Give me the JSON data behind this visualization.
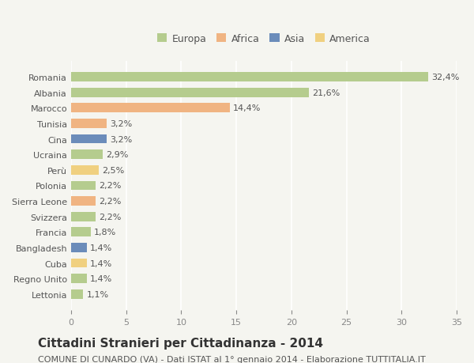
{
  "countries": [
    "Romania",
    "Albania",
    "Marocco",
    "Tunisia",
    "Cina",
    "Ucraina",
    "Perù",
    "Polonia",
    "Sierra Leone",
    "Svizzera",
    "Francia",
    "Bangladesh",
    "Cuba",
    "Regno Unito",
    "Lettonia"
  ],
  "values": [
    32.4,
    21.6,
    14.4,
    3.2,
    3.2,
    2.9,
    2.5,
    2.2,
    2.2,
    2.2,
    1.8,
    1.4,
    1.4,
    1.4,
    1.1
  ],
  "labels": [
    "32,4%",
    "21,6%",
    "14,4%",
    "3,2%",
    "3,2%",
    "2,9%",
    "2,5%",
    "2,2%",
    "2,2%",
    "2,2%",
    "1,8%",
    "1,4%",
    "1,4%",
    "1,4%",
    "1,1%"
  ],
  "continents": [
    "Europa",
    "Europa",
    "Africa",
    "Africa",
    "Asia",
    "Europa",
    "America",
    "Europa",
    "Africa",
    "Europa",
    "Europa",
    "Asia",
    "America",
    "Europa",
    "Europa"
  ],
  "continent_colors": {
    "Europa": "#b5cc8e",
    "Africa": "#f0b482",
    "Asia": "#6b8cba",
    "America": "#f0d080"
  },
  "legend_order": [
    "Europa",
    "Africa",
    "Asia",
    "America"
  ],
  "title": "Cittadini Stranieri per Cittadinanza - 2014",
  "subtitle": "COMUNE DI CUNARDO (VA) - Dati ISTAT al 1° gennaio 2014 - Elaborazione TUTTITALIA.IT",
  "xlim": [
    0,
    35
  ],
  "xticks": [
    0,
    5,
    10,
    15,
    20,
    25,
    30,
    35
  ],
  "background_color": "#f5f5f0",
  "grid_color": "#ffffff",
  "bar_height": 0.6,
  "title_fontsize": 11,
  "subtitle_fontsize": 8,
  "label_fontsize": 8,
  "tick_fontsize": 8,
  "legend_fontsize": 9
}
